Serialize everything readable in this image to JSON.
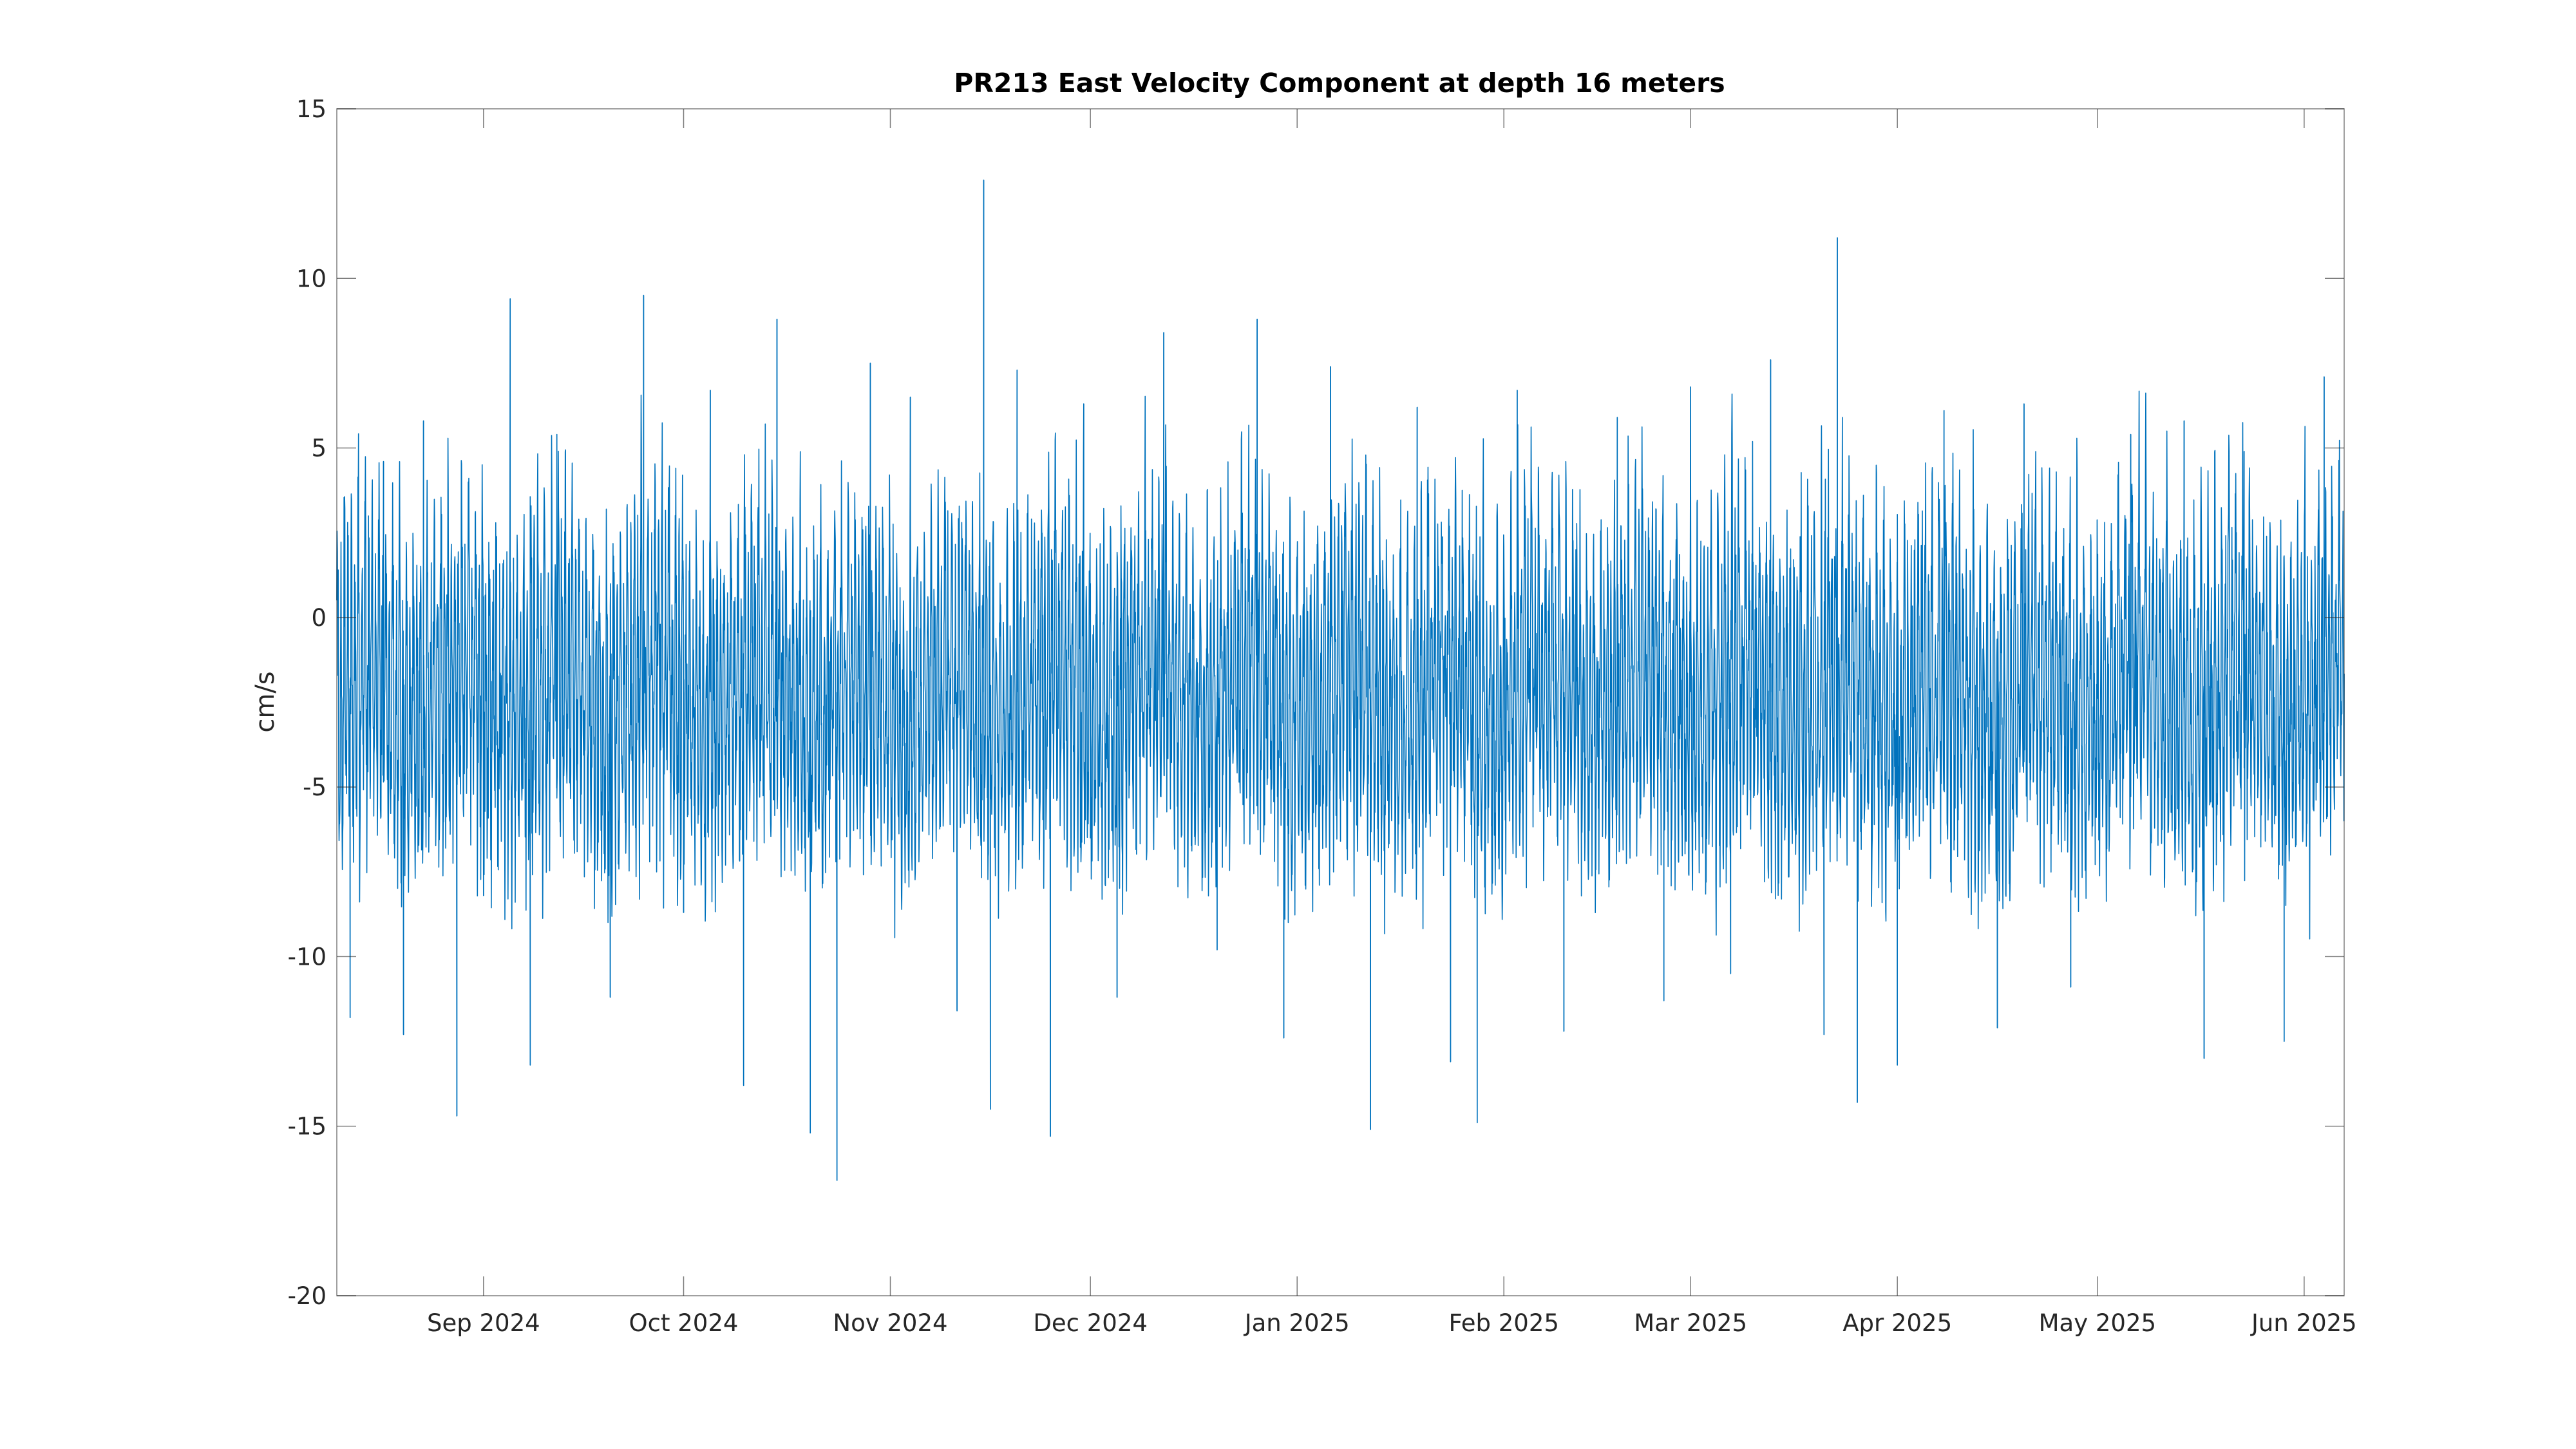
{
  "chart_data": {
    "type": "line",
    "title": "PR213 East Velocity Component at depth 16 meters",
    "xlabel": "",
    "ylabel": "cm/s",
    "x_range": [
      "2024-08-10",
      "2025-06-07"
    ],
    "xlim": [
      "2024-08-10",
      "2025-06-07"
    ],
    "ylim": [
      -20,
      15
    ],
    "y_ticks": [
      -20,
      -15,
      -10,
      -5,
      0,
      5,
      10,
      15
    ],
    "x_ticks": [
      {
        "date": "2024-09-01",
        "label": "Sep 2024"
      },
      {
        "date": "2024-10-01",
        "label": "Oct 2024"
      },
      {
        "date": "2024-11-01",
        "label": "Nov 2024"
      },
      {
        "date": "2024-12-01",
        "label": "Dec 2024"
      },
      {
        "date": "2025-01-01",
        "label": "Jan 2025"
      },
      {
        "date": "2025-02-01",
        "label": "Feb 2025"
      },
      {
        "date": "2025-03-01",
        "label": "Mar 2025"
      },
      {
        "date": "2025-04-01",
        "label": "Apr 2025"
      },
      {
        "date": "2025-05-01",
        "label": "May 2025"
      },
      {
        "date": "2025-06-01",
        "label": "Jun 2025"
      }
    ],
    "grid": false,
    "legend": false,
    "line_color": "#0072bd",
    "series": [
      {
        "x": [
          "2024-08-12",
          "2024-08-17",
          "2024-08-20",
          "2024-08-23",
          "2024-08-28",
          "2024-09-01",
          "2024-09-05",
          "2024-09-08",
          "2024-09-12",
          "2024-09-20",
          "2024-09-25",
          "2024-10-01",
          "2024-10-05",
          "2024-10-10",
          "2024-10-15",
          "2024-10-20",
          "2024-10-24",
          "2024-10-29",
          "2024-11-04",
          "2024-11-11",
          "2024-11-15",
          "2024-11-16",
          "2024-11-20",
          "2024-11-25",
          "2024-11-30",
          "2024-12-01",
          "2024-12-05",
          "2024-12-12",
          "2024-12-20",
          "2024-12-26",
          "2024-12-30",
          "2025-01-06",
          "2025-01-12",
          "2025-01-19",
          "2025-01-24",
          "2025-01-28",
          "2025-02-03",
          "2025-02-10",
          "2025-02-18",
          "2025-02-25",
          "2025-03-01",
          "2025-03-07",
          "2025-03-13",
          "2025-03-21",
          "2025-03-23",
          "2025-03-26",
          "2025-04-01",
          "2025-04-08",
          "2025-04-16",
          "2025-04-20",
          "2025-04-27",
          "2025-05-06",
          "2025-05-14",
          "2025-05-17",
          "2025-05-23",
          "2025-05-29",
          "2025-06-04"
        ],
        "y": [
          -11.8,
          4.6,
          -12.3,
          5.8,
          -14.7,
          -8.2,
          9.4,
          -13.2,
          5.4,
          -11.2,
          9.5,
          -8.7,
          6.7,
          -13.8,
          8.8,
          -15.2,
          -16.6,
          7.5,
          6.5,
          -11.6,
          12.9,
          -14.5,
          7.3,
          -15.3,
          6.3,
          -6.5,
          -11.2,
          8.4,
          -9.8,
          8.8,
          -12.4,
          7.4,
          -15.1,
          6.2,
          -13.1,
          -14.9,
          6.7,
          -12.2,
          5.9,
          -11.3,
          6.8,
          -10.5,
          7.6,
          -12.3,
          11.2,
          -14.3,
          -13.2,
          6.1,
          -12.1,
          6.3,
          -10.9,
          5.4,
          5.8,
          -13.0,
          4.9,
          -12.5,
          7.1
        ]
      }
    ]
  }
}
